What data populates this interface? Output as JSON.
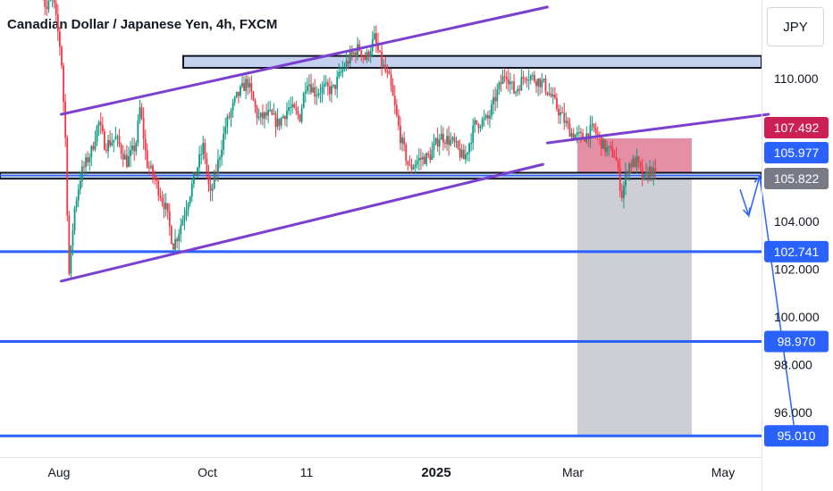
{
  "title": "Canadian Dollar / Japanese Yen, 4h, FXCM",
  "currency": "JPY",
  "colors": {
    "up": "#089981",
    "down": "#f23645",
    "channel": "#7b3fcf",
    "level": "#2962ff",
    "stop_zone": "#e07b98",
    "target_zone": "#b2b5be"
  },
  "chart_data": {
    "type": "candlestick",
    "price_axis": {
      "ticks": [
        "110.000",
        "104.000",
        "102.000",
        "100.000",
        "98.000",
        "96.000"
      ],
      "ylim": [
        93.9,
        114.8
      ]
    },
    "time_axis": {
      "labels": [
        {
          "text": "Aug",
          "bold": false
        },
        {
          "text": "Oct",
          "bold": false
        },
        {
          "text": "11",
          "bold": false
        },
        {
          "text": "2025",
          "bold": true
        },
        {
          "text": "Mar",
          "bold": false
        },
        {
          "text": "May",
          "bold": false
        }
      ]
    },
    "price_badges": [
      {
        "label": "107.492",
        "color": "#cc1f55"
      },
      {
        "label": "105.977",
        "color": "#2962ff"
      },
      {
        "label": "105.822",
        "color": "#787b86"
      },
      {
        "label": "102.741",
        "color": "#2962ff"
      },
      {
        "label": "98.970",
        "color": "#2962ff"
      },
      {
        "label": "95.010",
        "color": "#2962ff"
      }
    ],
    "horizontal_levels": [
      102.741,
      98.97,
      95.01
    ],
    "resistance_zone": [
      110.45,
      110.95
    ],
    "support_zone": [
      105.8,
      106.05
    ],
    "channel": {
      "upper": [
        [
          1.0,
          108.5
        ],
        [
          23.2,
          113.0
        ]
      ],
      "lower": [
        [
          1.0,
          101.5
        ],
        [
          23.0,
          106.4
        ]
      ],
      "right_line": [
        [
          23.2,
          107.3
        ],
        [
          33.3,
          108.5
        ]
      ]
    },
    "trade_box": {
      "entry": 105.85,
      "stop": 107.492,
      "target": 95.01
    },
    "projected_path": [
      [
        32.0,
        105.35
      ],
      [
        32.4,
        104.25
      ],
      [
        32.9,
        105.9
      ],
      [
        34.5,
        95.15
      ]
    ]
  }
}
